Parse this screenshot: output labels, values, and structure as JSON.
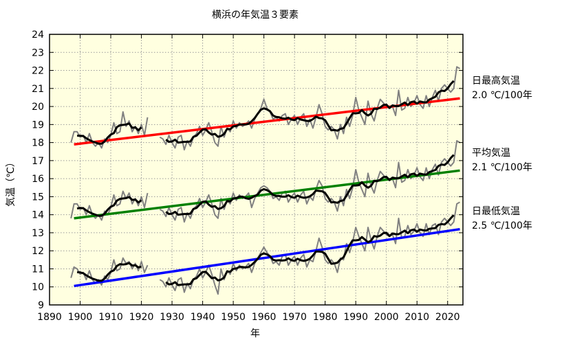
{
  "chart_data": {
    "type": "line",
    "title": "横浜の年気温３要素",
    "xlabel": "年",
    "ylabel": "気温（℃）",
    "xlim": [
      1890,
      2025
    ],
    "ylim": [
      9,
      24
    ],
    "xticks": [
      1890,
      1900,
      1910,
      1920,
      1930,
      1940,
      1950,
      1960,
      1970,
      1980,
      1990,
      2000,
      2010,
      2020
    ],
    "yticks": [
      9,
      10,
      11,
      12,
      13,
      14,
      15,
      16,
      17,
      18,
      19,
      20,
      21,
      22,
      23,
      24
    ],
    "grid": true,
    "background": "#ffffe0",
    "annual_color": "#808080",
    "moving_average_color": "#000000",
    "segments": [
      {
        "years": [
          1897,
          1922
        ]
      },
      {
        "years": [
          1926,
          2024
        ]
      }
    ],
    "series": [
      {
        "name": "日最高気温",
        "trend_label": "2.0 ℃/100年",
        "trend_color": "#ff0000",
        "trend": {
          "from": [
            1898,
            17.9
          ],
          "to": [
            2024,
            20.45
          ]
        },
        "annual": [
          [
            18.0,
            18.6,
            18.6,
            18.3,
            18.4,
            18.0,
            18.5,
            18.0,
            17.8,
            18.0,
            17.7,
            18.2,
            18.0,
            18.4,
            19.1,
            18.5,
            18.6,
            19.7,
            18.9,
            19.2,
            18.6,
            18.9,
            18.5,
            19.0,
            18.4,
            19.4
          ],
          [
            18.3,
            18.2,
            17.9,
            18.4,
            18.0,
            17.7,
            18.3,
            18.4,
            17.6,
            18.1,
            17.8,
            18.3,
            18.5,
            18.9,
            18.4,
            18.7,
            19.1,
            18.6,
            18.0,
            17.8,
            18.9,
            18.3,
            18.8,
            18.6,
            19.2,
            18.8,
            19.1,
            18.9,
            19.0,
            19.2,
            18.8,
            19.3,
            19.6,
            19.9,
            20.4,
            19.9,
            19.7,
            19.3,
            19.4,
            19.2,
            19.5,
            19.6,
            19.0,
            19.3,
            19.5,
            19.0,
            19.4,
            19.6,
            18.9,
            19.3,
            18.8,
            19.4,
            20.1,
            19.6,
            18.9,
            18.7,
            18.9,
            18.7,
            18.2,
            19.0,
            18.5,
            19.4,
            18.9,
            19.5,
            20.5,
            19.8,
            19.4,
            19.0,
            20.3,
            19.6,
            19.2,
            19.9,
            20.4,
            20.2,
            20.0,
            19.9,
            20.0,
            19.5,
            20.9,
            19.8,
            19.9,
            20.5,
            20.0,
            20.2,
            20.6,
            20.1,
            19.9,
            20.6,
            20.0,
            20.5,
            20.9,
            20.3,
            21.0,
            21.2,
            21.0,
            20.8,
            21.0,
            22.2,
            22.1
          ]
        ]
      },
      {
        "name": "平均気温",
        "trend_label": "2.1 ℃/100年",
        "trend_color": "#008000",
        "trend": {
          "from": [
            1898,
            13.8
          ],
          "to": [
            2024,
            16.45
          ]
        },
        "annual": [
          [
            13.8,
            14.6,
            14.6,
            14.3,
            14.4,
            14.0,
            14.5,
            14.0,
            13.8,
            14.0,
            13.7,
            14.2,
            14.0,
            14.4,
            15.1,
            14.5,
            14.6,
            15.3,
            14.9,
            15.2,
            14.6,
            14.9,
            14.5,
            15.0,
            14.4,
            15.2
          ],
          [
            14.3,
            14.2,
            13.9,
            14.4,
            14.0,
            13.7,
            14.3,
            14.4,
            13.6,
            14.1,
            13.8,
            14.3,
            14.5,
            14.9,
            14.4,
            14.7,
            15.1,
            14.6,
            14.0,
            13.8,
            14.9,
            14.3,
            14.8,
            14.6,
            15.2,
            14.8,
            15.1,
            14.9,
            15.0,
            15.2,
            14.4,
            14.9,
            15.2,
            15.5,
            15.6,
            15.5,
            15.3,
            14.9,
            15.0,
            14.8,
            15.2,
            15.3,
            14.7,
            15.0,
            15.2,
            14.7,
            15.1,
            15.3,
            14.6,
            15.0,
            14.8,
            15.4,
            15.9,
            15.6,
            14.9,
            14.7,
            14.9,
            14.7,
            14.2,
            15.0,
            14.5,
            15.4,
            14.9,
            15.5,
            16.5,
            15.8,
            15.4,
            15.0,
            16.3,
            15.6,
            15.2,
            15.9,
            16.4,
            16.2,
            16.0,
            15.9,
            16.0,
            15.5,
            16.9,
            15.8,
            15.9,
            16.5,
            16.0,
            16.2,
            16.6,
            16.1,
            15.9,
            16.6,
            16.0,
            16.5,
            16.8,
            16.2,
            16.9,
            17.1,
            16.9,
            16.7,
            16.9,
            18.1,
            18.0
          ]
        ]
      },
      {
        "name": "日最低気温",
        "trend_label": "2.5 ℃/100年",
        "trend_color": "#0000ff",
        "trend": {
          "from": [
            1898,
            10.05
          ],
          "to": [
            2024,
            13.2
          ]
        },
        "annual": [
          [
            10.5,
            11.1,
            11.0,
            10.7,
            10.8,
            10.4,
            10.9,
            10.4,
            10.2,
            10.4,
            10.1,
            10.6,
            10.4,
            10.8,
            11.5,
            10.9,
            11.0,
            11.6,
            11.3,
            11.4,
            11.0,
            11.3,
            10.9,
            11.4,
            10.8,
            11.2
          ],
          [
            10.4,
            10.3,
            10.0,
            10.5,
            10.1,
            9.8,
            10.4,
            10.5,
            9.7,
            10.2,
            9.9,
            10.4,
            10.6,
            11.0,
            10.5,
            10.8,
            11.2,
            10.7,
            10.1,
            9.6,
            11.0,
            10.4,
            10.9,
            10.7,
            11.3,
            10.9,
            11.2,
            11.0,
            11.1,
            11.3,
            10.8,
            11.3,
            11.6,
            11.9,
            12.2,
            11.9,
            11.7,
            11.3,
            11.4,
            11.2,
            11.7,
            11.8,
            11.2,
            11.5,
            11.7,
            11.2,
            11.6,
            11.8,
            11.1,
            11.5,
            11.4,
            12.0,
            12.7,
            12.2,
            11.5,
            11.3,
            11.5,
            11.3,
            10.8,
            11.6,
            11.5,
            12.4,
            11.9,
            12.5,
            13.3,
            12.8,
            12.4,
            12.0,
            13.3,
            12.6,
            12.1,
            12.8,
            13.3,
            13.1,
            12.9,
            12.8,
            12.9,
            12.4,
            13.8,
            12.7,
            12.8,
            13.4,
            12.9,
            13.1,
            13.5,
            13.0,
            12.8,
            13.5,
            12.9,
            13.4,
            13.5,
            12.9,
            13.6,
            13.8,
            13.6,
            13.4,
            13.6,
            14.6,
            14.7
          ]
        ]
      }
    ]
  }
}
